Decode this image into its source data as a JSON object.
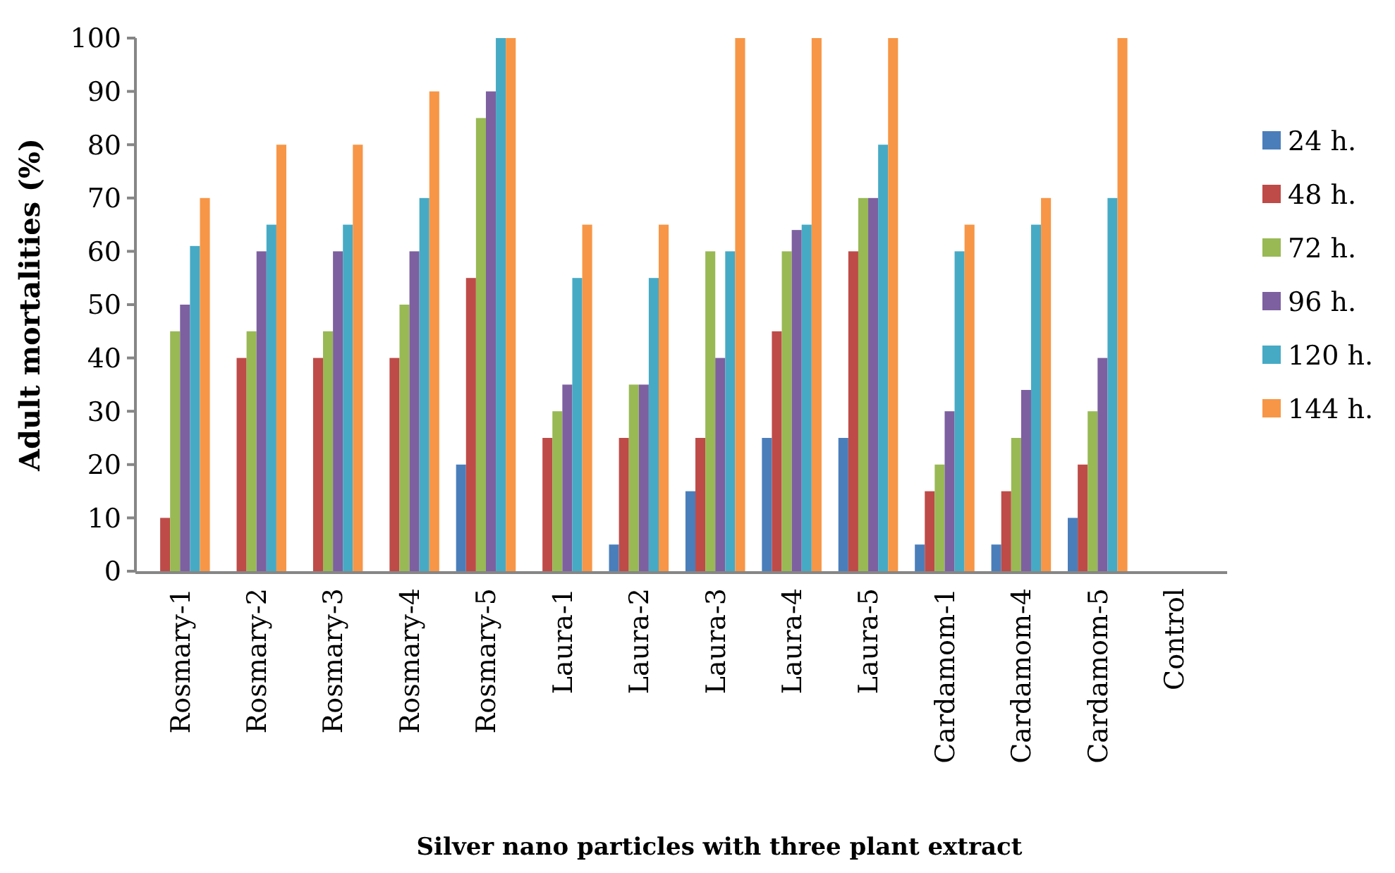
{
  "chart_data": {
    "type": "bar",
    "xlabel": "Silver nano particles with three plant extract",
    "ylabel": "Adult mortalities (%)",
    "categories": [
      "Rosmary-1",
      "Rosmary-2",
      "Rosmary-3",
      "Rosmary-4",
      "Rosmary-5",
      "Laura-1",
      "Laura-2",
      "Laura-3",
      "Laura-4",
      "Laura-5",
      "Cardamom-1",
      "Cardamom-4",
      "Cardamom-5",
      "Control"
    ],
    "series": [
      {
        "name": "24 h.",
        "color": "#4a7ebb",
        "values": [
          0,
          0,
          0,
          0,
          20,
          0,
          5,
          15,
          25,
          25,
          5,
          5,
          10,
          0
        ]
      },
      {
        "name": "48 h.",
        "color": "#be4b48",
        "values": [
          10,
          40,
          40,
          40,
          55,
          25,
          25,
          25,
          45,
          60,
          15,
          15,
          20,
          0
        ]
      },
      {
        "name": "72 h.",
        "color": "#98b954",
        "values": [
          45,
          45,
          45,
          50,
          85,
          30,
          35,
          60,
          60,
          70,
          20,
          25,
          30,
          0
        ]
      },
      {
        "name": "96 h.",
        "color": "#7d60a0",
        "values": [
          50,
          60,
          60,
          60,
          90,
          35,
          35,
          40,
          64,
          70,
          30,
          34,
          40,
          0
        ]
      },
      {
        "name": "120 h.",
        "color": "#46aac5",
        "values": [
          61,
          65,
          65,
          70,
          100,
          55,
          55,
          60,
          65,
          80,
          60,
          65,
          70,
          0
        ]
      },
      {
        "name": "144 h.",
        "color": "#f79646",
        "values": [
          70,
          80,
          80,
          90,
          100,
          65,
          65,
          100,
          100,
          100,
          65,
          70,
          100,
          0
        ]
      }
    ],
    "ylim": [
      0,
      100
    ],
    "yticks": [
      0,
      10,
      20,
      30,
      40,
      50,
      60,
      70,
      80,
      90,
      100
    ],
    "grid": false,
    "legend": "right"
  }
}
